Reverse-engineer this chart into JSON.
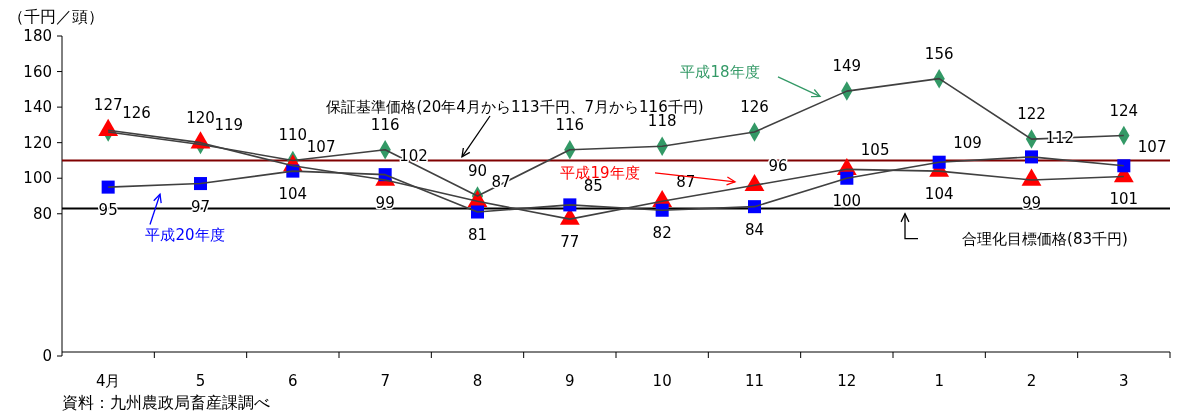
{
  "chart_data": {
    "type": "line",
    "ylabel": "（千円／頭）",
    "categories": [
      "4月",
      "5",
      "6",
      "7",
      "8",
      "9",
      "10",
      "11",
      "12",
      "1",
      "2",
      "3"
    ],
    "series": [
      {
        "name": "平成18年度",
        "color": "#339966",
        "marker": "diamond",
        "values": [
          126,
          119,
          110,
          116,
          90,
          116,
          118,
          126,
          149,
          156,
          122,
          124
        ]
      },
      {
        "name": "平成19年度",
        "color": "#ff0000",
        "marker": "triangle",
        "values": [
          127,
          120,
          107,
          99,
          87,
          77,
          87,
          96,
          105,
          104,
          99,
          101
        ]
      },
      {
        "name": "平成20年度",
        "color": "#0000ff",
        "marker": "square",
        "values": [
          95,
          97,
          104,
          102,
          81,
          85,
          82,
          84,
          100,
          109,
          112,
          107
        ]
      }
    ],
    "ylim": [
      0,
      180
    ],
    "yticks": [
      0,
      80,
      100,
      120,
      140,
      160,
      180
    ],
    "ref_lines": [
      {
        "axis": "y",
        "value": 110,
        "label": "保証基準価格(20年4月から113千円、7月から116千円)",
        "color": "#800000"
      },
      {
        "axis": "y",
        "value": 83,
        "label": "合理化目標価格(83千円)",
        "color": "#000000"
      }
    ],
    "data_labels": true,
    "grid": false,
    "annotations": [
      "資料：九州農政局畜産課調べ"
    ]
  }
}
